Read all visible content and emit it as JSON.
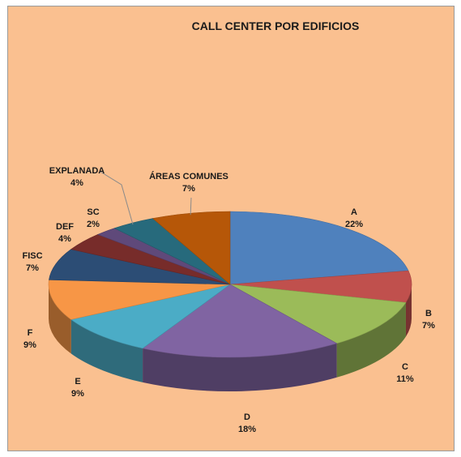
{
  "chart_data": {
    "type": "pie",
    "title": "CALL CENTER POR EDIFICIOS",
    "slices": [
      {
        "label": "A",
        "value": 22,
        "display": "22%",
        "color": "#4f81bd"
      },
      {
        "label": "B",
        "value": 7,
        "display": "7%",
        "color": "#c0504d"
      },
      {
        "label": "C",
        "value": 11,
        "display": "11%",
        "color": "#9bbb59"
      },
      {
        "label": "D",
        "value": 18,
        "display": "18%",
        "color": "#8064a2"
      },
      {
        "label": "E",
        "value": 9,
        "display": "9%",
        "color": "#4bacc6"
      },
      {
        "label": "F",
        "value": 9,
        "display": "9%",
        "color": "#f79646"
      },
      {
        "label": "FISC",
        "value": 7,
        "display": "7%",
        "color": "#2c4d75"
      },
      {
        "label": "DEF",
        "value": 4,
        "display": "4%",
        "color": "#772c2a"
      },
      {
        "label": "SC",
        "value": 2,
        "display": "2%",
        "color": "#5f497a"
      },
      {
        "label": "EXPLANADA",
        "value": 4,
        "display": "4%",
        "color": "#276a7c"
      },
      {
        "label": "ÁREAS COMUNES",
        "value": 7,
        "display": "7%",
        "color": "#b65708"
      }
    ]
  }
}
